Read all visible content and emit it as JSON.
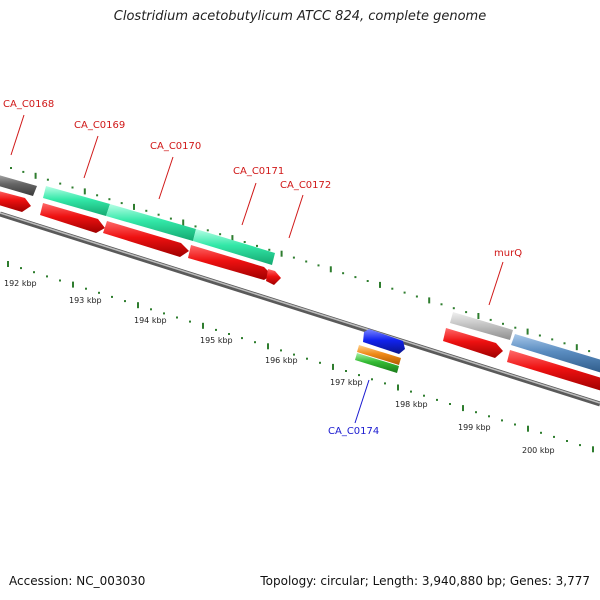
{
  "title": "Clostridium acetobutylicum ATCC 824, complete genome",
  "accession_text": "Accession: NC_003030",
  "topology_text": "Topology: circular; Length: 3,940,880 bp; Genes: 3,777",
  "colors": {
    "backbone": "#7a7a7a",
    "tick": "#2e7d2e",
    "gene_label_red": "#d01818",
    "gene_label_blue": "#1a1ad0",
    "feature_red": "#ee1111",
    "feature_teal": "#33e8a8",
    "feature_darkgray": "#6a6a6a",
    "feature_lightgray": "#c4c4c4",
    "feature_steelblue": "#5a8cc0",
    "feature_blue": "#1122ee",
    "feature_orange": "#f08a18",
    "feature_green": "#33bb33"
  },
  "kbp_labels": [
    "192 kbp",
    "193 kbp",
    "194 kbp",
    "195 kbp",
    "196 kbp",
    "197 kbp",
    "198 kbp",
    "199 kbp",
    "200 kbp"
  ],
  "gene_labels": [
    "CA_C0168",
    "CA_C0169",
    "CA_C0170",
    "CA_C0171",
    "CA_C0172",
    "murQ",
    "CA_C0174"
  ]
}
